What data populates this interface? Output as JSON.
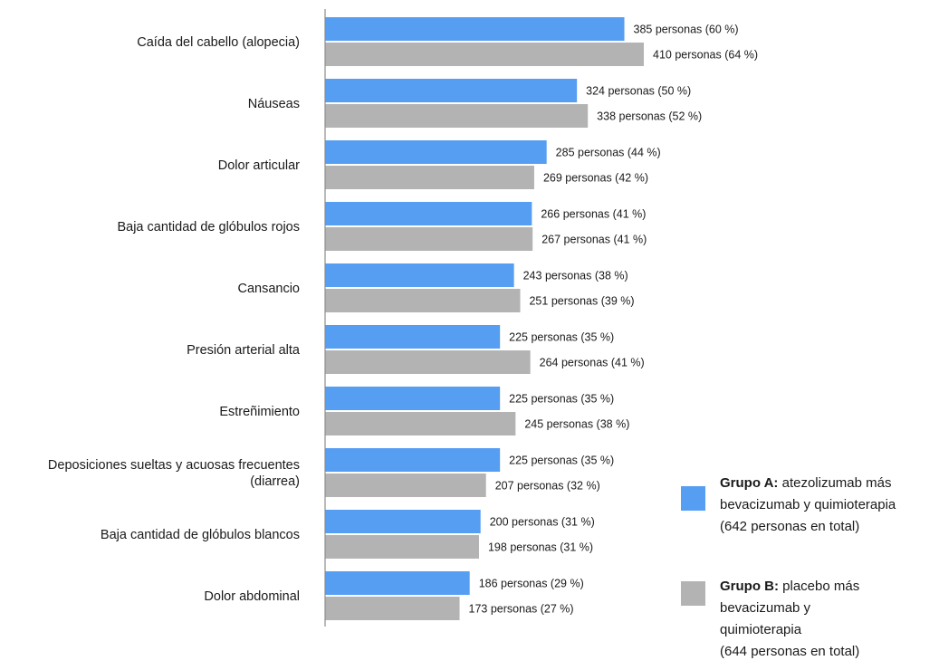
{
  "chart_data": {
    "type": "bar",
    "orientation": "horizontal",
    "categories": [
      [
        "Caída del cabello (alopecia)"
      ],
      [
        "Náuseas"
      ],
      [
        "Dolor articular"
      ],
      [
        "Baja cantidad de glóbulos rojos"
      ],
      [
        "Cansancio"
      ],
      [
        "Presión arterial alta"
      ],
      [
        "Estreñimiento"
      ],
      [
        "Deposiciones sueltas y acuosas frecuentes",
        "(diarrea)"
      ],
      [
        "Baja cantidad de glóbulos blancos"
      ],
      [
        "Dolor abdominal"
      ]
    ],
    "series": [
      {
        "name": "Grupo A",
        "color": "#559ef2",
        "values": [
          385,
          324,
          285,
          266,
          243,
          225,
          225,
          225,
          200,
          186
        ],
        "labels": [
          "385 personas (60 %)",
          "324 personas (50 %)",
          "285 personas (44 %)",
          "266 personas (41 %)",
          "243 personas (38 %)",
          "225 personas (35 %)",
          "225 personas (35 %)",
          "225 personas (35 %)",
          "200 personas (31 %)",
          "186 personas (29 %)"
        ]
      },
      {
        "name": "Grupo B",
        "color": "#b3b3b3",
        "values": [
          410,
          338,
          269,
          267,
          251,
          264,
          245,
          207,
          198,
          173
        ],
        "labels": [
          "410 personas (64 %)",
          "338 personas (52 %)",
          "269 personas (42 %)",
          "267 personas (41 %)",
          "251 personas (39 %)",
          "264 personas (41 %)",
          "245 personas (38 %)",
          "207 personas (32 %)",
          "198 personas (31 %)",
          "173 personas (27 %)"
        ]
      }
    ],
    "xlim": [
      0,
      410
    ],
    "grid": false,
    "legend_position": "bottom-right"
  },
  "legend": {
    "group_a": {
      "title": "Grupo A:",
      "lines": [
        " atezolizumab más",
        "bevacizumab y quimioterapia",
        "(642 personas en total)"
      ]
    },
    "group_b": {
      "title": "Grupo B:",
      "lines": [
        " placebo más",
        "bevacizumab y",
        "quimioterapia",
        "(644 personas en total)"
      ]
    }
  }
}
